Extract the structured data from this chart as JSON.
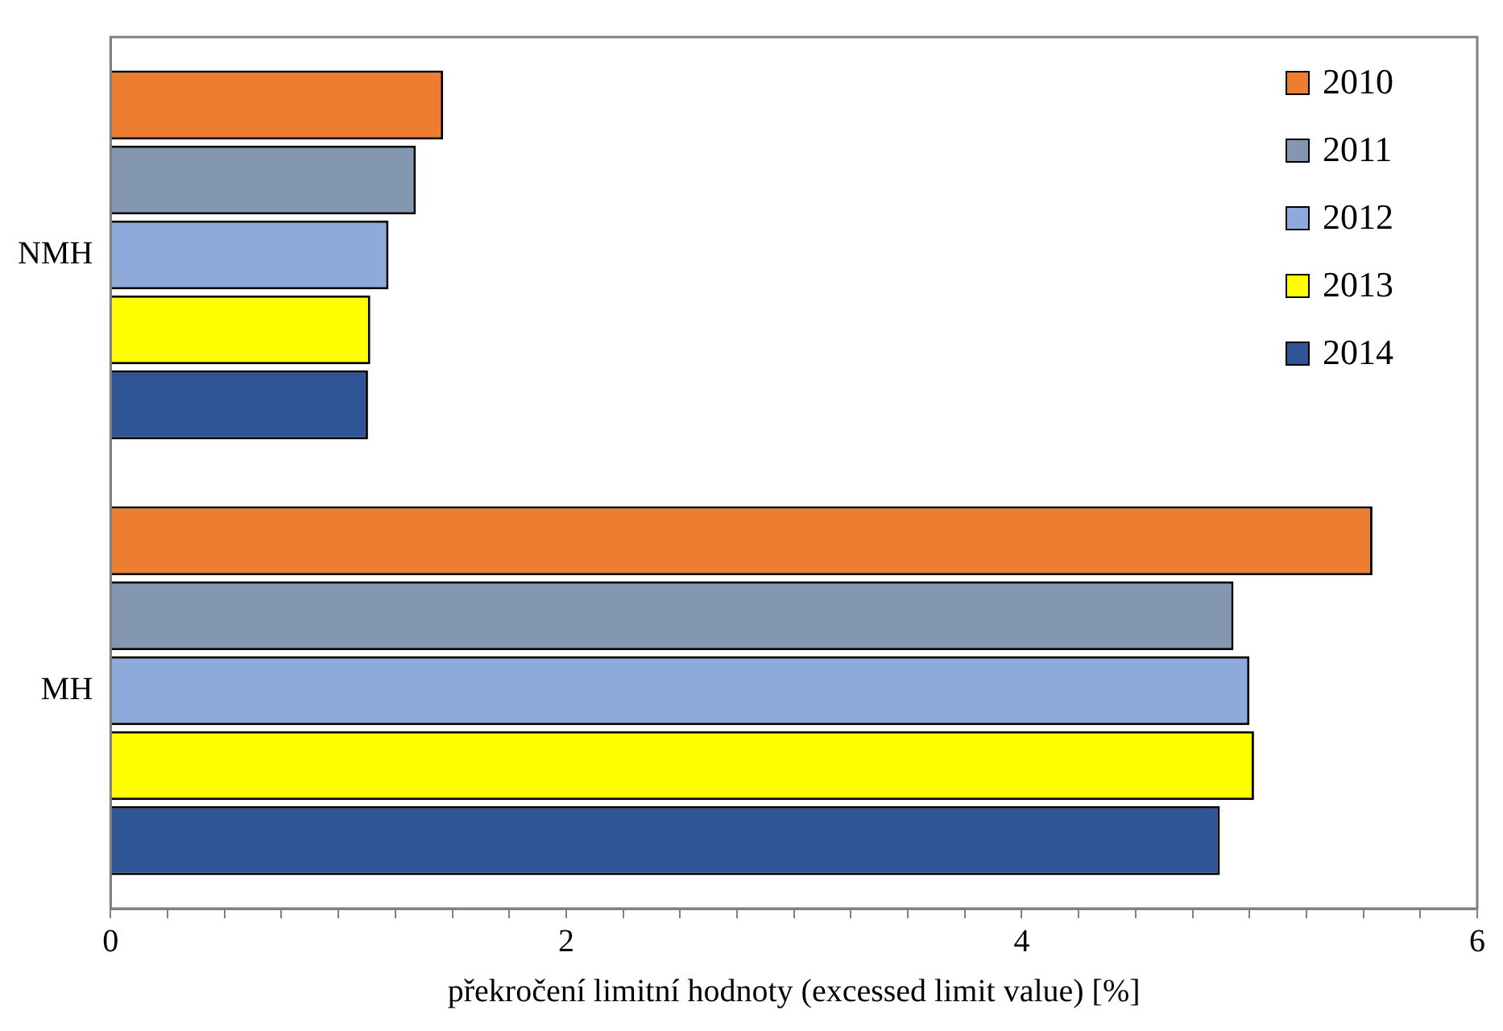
{
  "chart_data": {
    "type": "bar",
    "orientation": "horizontal",
    "xlabel": "překročení limitní hodnoty (excessed limit value) [%]",
    "categories": [
      "NMH",
      "MH"
    ],
    "series": [
      {
        "name": "2010",
        "color": "#ed7d31",
        "values": [
          1.46,
          5.54
        ]
      },
      {
        "name": "2011",
        "color": "#8497b0",
        "values": [
          1.34,
          4.93
        ]
      },
      {
        "name": "2012",
        "color": "#8eaadb",
        "values": [
          1.22,
          5.0
        ]
      },
      {
        "name": "2013",
        "color": "#ffff00",
        "values": [
          1.14,
          5.02
        ]
      },
      {
        "name": "2014",
        "color": "#2f5597",
        "values": [
          1.13,
          4.87
        ]
      }
    ],
    "xlim": [
      0,
      6
    ],
    "xticks": [
      0,
      {
        "value": 0.25,
        "label": null
      },
      {
        "value": 0.5,
        "label": null
      },
      {
        "value": 0.75,
        "label": null
      },
      {
        "value": 1,
        "label": null
      },
      {
        "value": 1.25,
        "label": null
      },
      {
        "value": 1.5,
        "label": null
      },
      {
        "value": 1.75,
        "label": null
      },
      2,
      {
        "value": 2.25,
        "label": null
      },
      {
        "value": 2.5,
        "label": null
      },
      {
        "value": 2.75,
        "label": null
      },
      {
        "value": 3,
        "label": null
      },
      {
        "value": 3.25,
        "label": null
      },
      {
        "value": 3.5,
        "label": null
      },
      {
        "value": 3.75,
        "label": null
      },
      4,
      {
        "value": 4.25,
        "label": null
      },
      {
        "value": 4.5,
        "label": null
      },
      {
        "value": 4.75,
        "label": null
      },
      {
        "value": 5,
        "label": null
      },
      {
        "value": 5.25,
        "label": null
      },
      {
        "value": 5.5,
        "label": null
      },
      {
        "value": 5.75,
        "label": null
      },
      6
    ],
    "grid": false,
    "legend": "top right"
  }
}
